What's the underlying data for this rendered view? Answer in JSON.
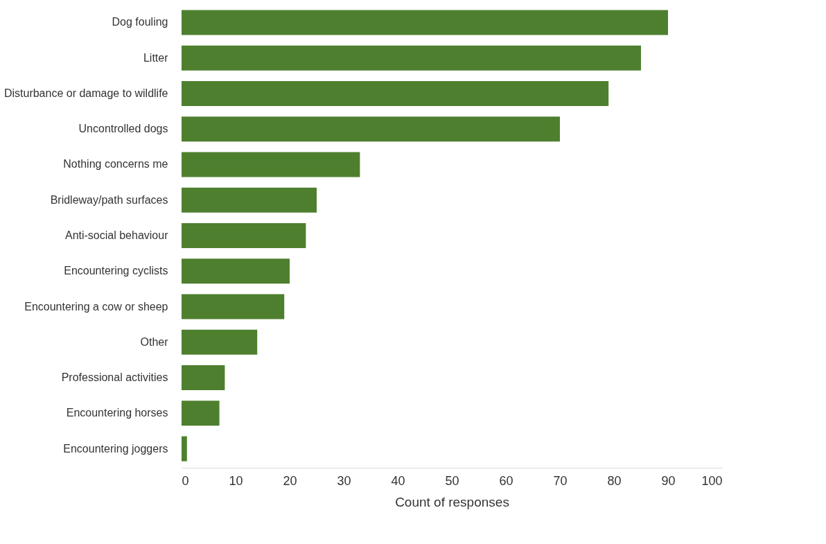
{
  "chart_data": {
    "type": "bar",
    "orientation": "horizontal",
    "xlabel": "Count of responses",
    "categories": [
      "Dog fouling",
      "Litter",
      "Disturbance or damage to wildlife",
      "Uncontrolled dogs",
      "Nothing concerns me",
      "Bridleway/path surfaces",
      "Anti-social behaviour",
      "Encountering cyclists",
      "Encountering a cow or sheep",
      "Other",
      "Professional activities",
      "Encountering horses",
      "Encountering joggers"
    ],
    "values": [
      90,
      85,
      79,
      70,
      33,
      25,
      23,
      20,
      19,
      14,
      8,
      7,
      1
    ],
    "color": "#4e7f2e",
    "xlim": [
      0,
      100
    ],
    "xticks": [
      0,
      10,
      20,
      30,
      40,
      50,
      60,
      70,
      80,
      90,
      100
    ],
    "grid": false
  }
}
